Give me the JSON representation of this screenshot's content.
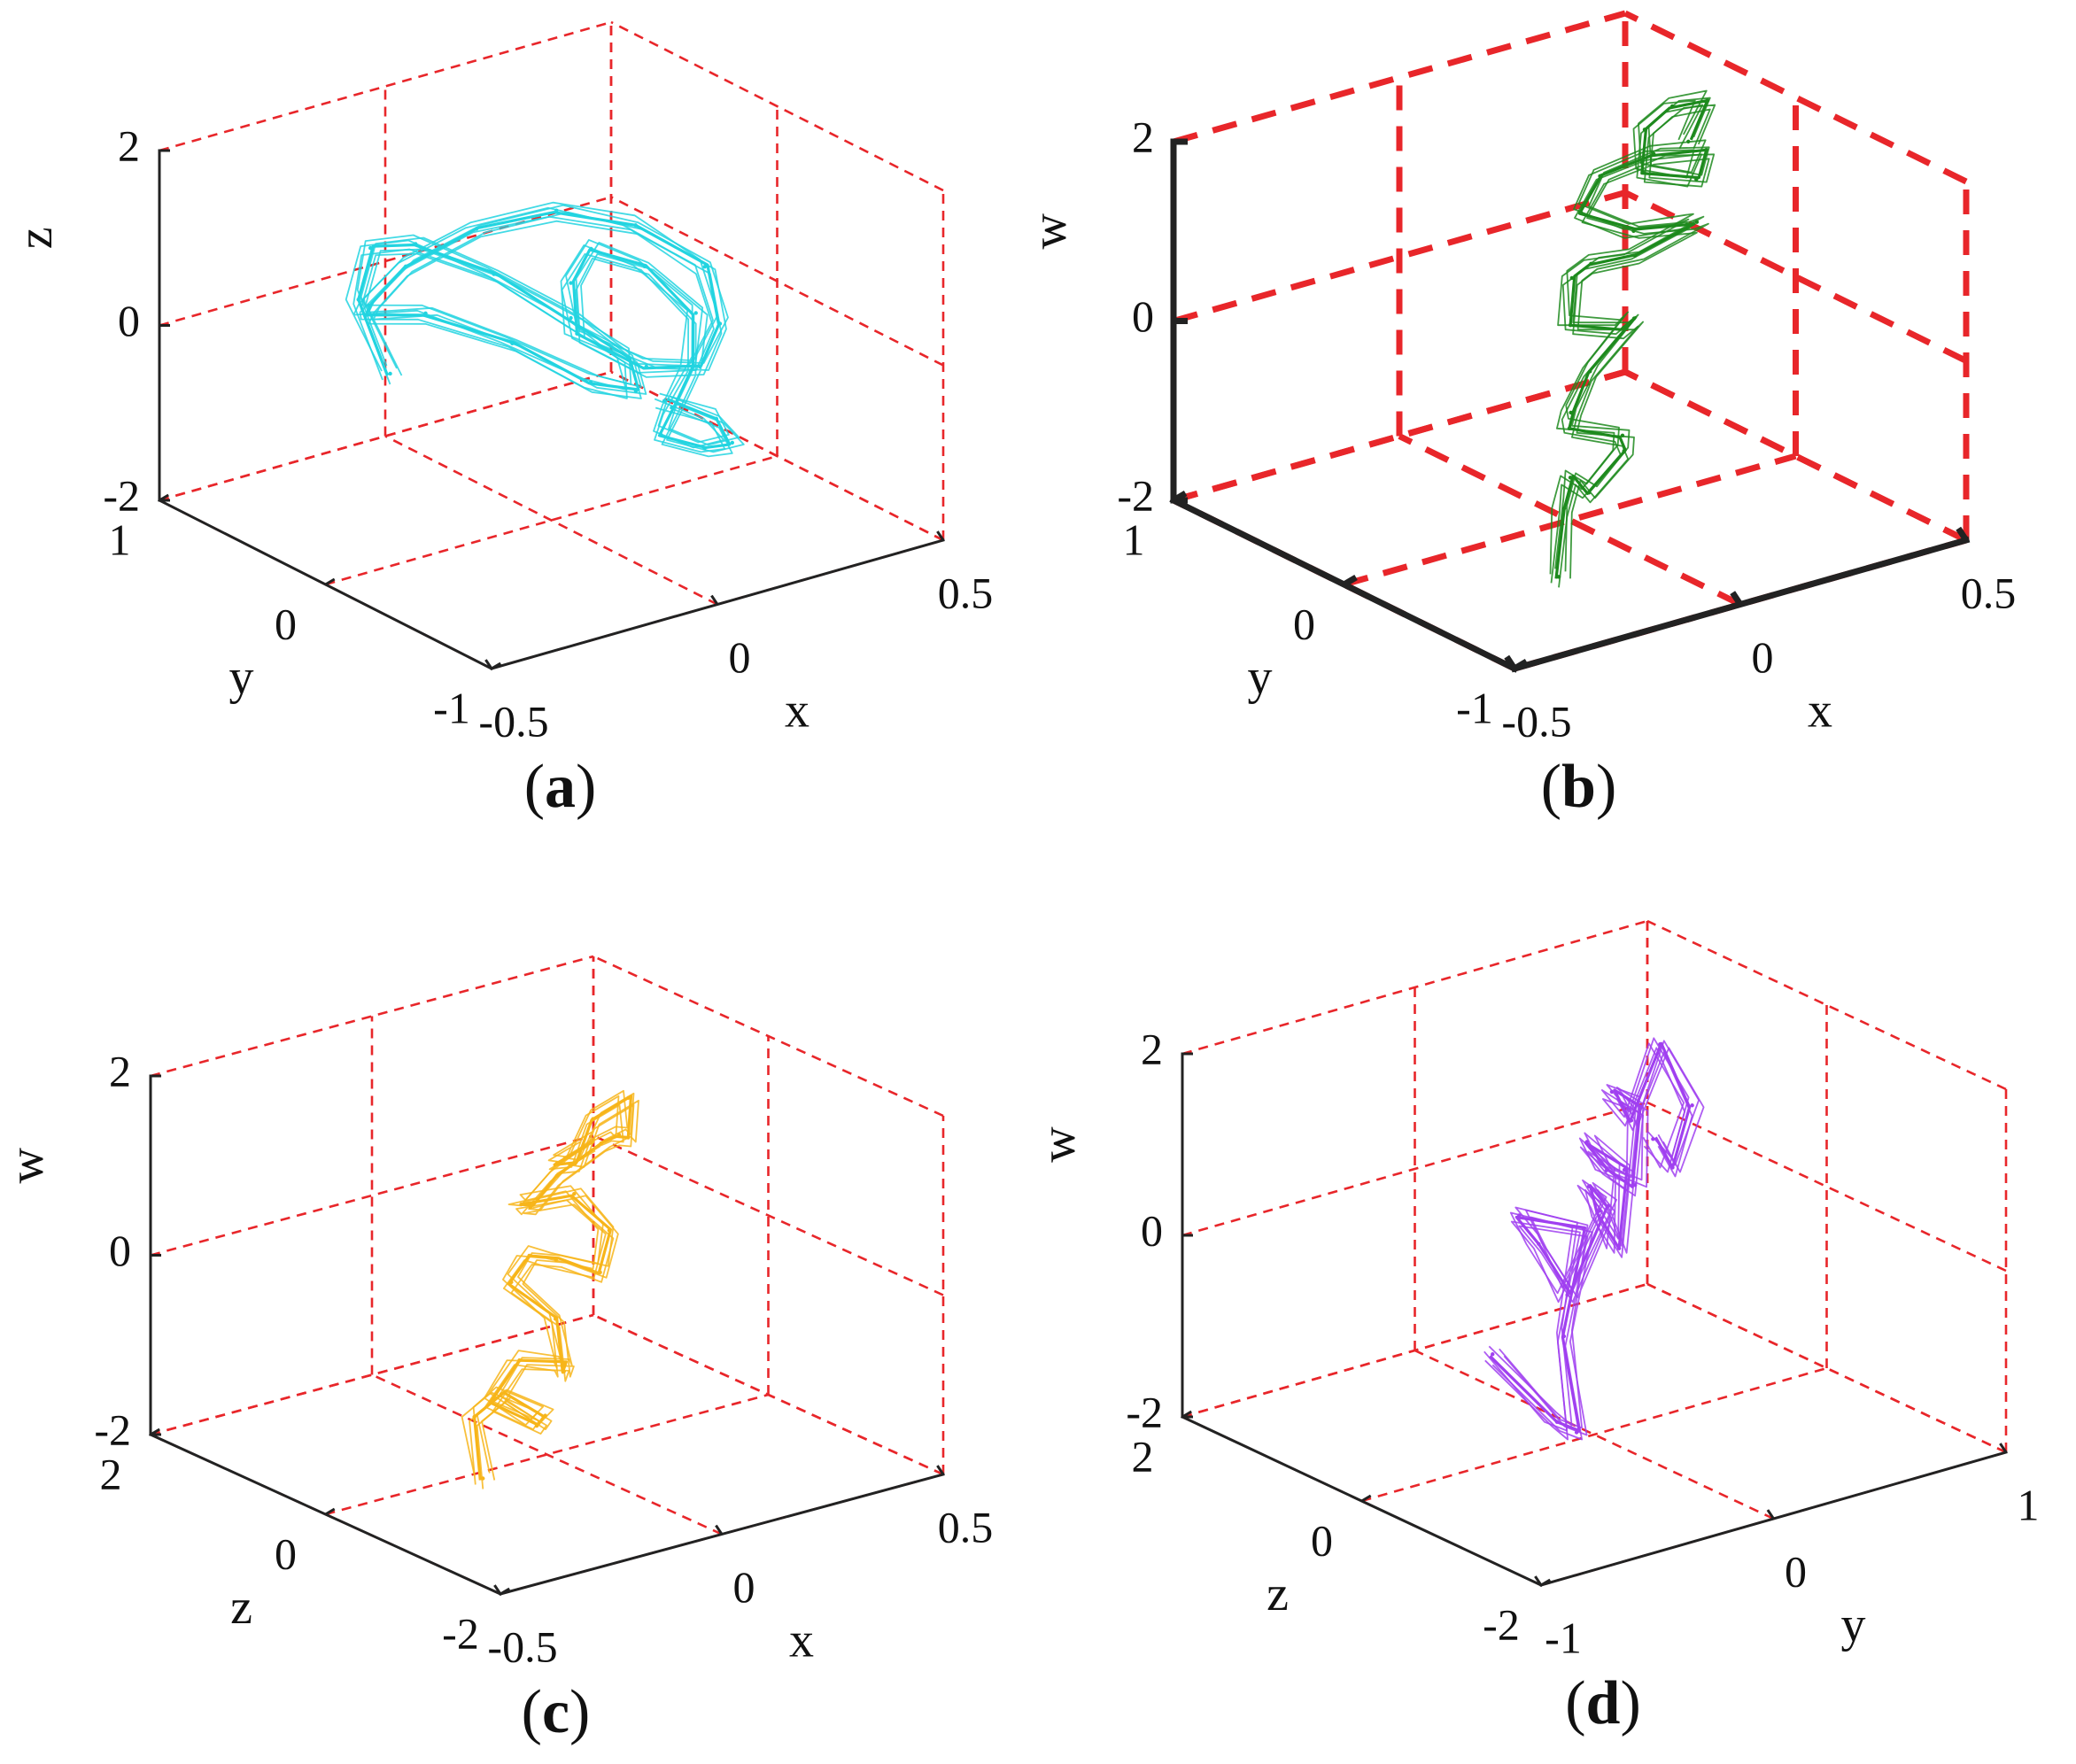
{
  "figure": {
    "panels": [
      {
        "id": "a",
        "caption_letter": "a",
        "line_color": "#22d4e0",
        "axis_weight": "thin",
        "chart_data": {
          "type": "line",
          "subtype": "3d-phase-portrait",
          "title": "",
          "x": {
            "label": "x",
            "ticks": [
              "-0.5",
              "0",
              "0.5"
            ],
            "range": [
              -0.5,
              0.5
            ]
          },
          "y": {
            "label": "y",
            "ticks": [
              "-1",
              "0",
              "1"
            ],
            "range": [
              -1,
              1
            ]
          },
          "z": {
            "label": "z",
            "ticks": [
              "-2",
              "0",
              "2"
            ],
            "range": [
              -2,
              2
            ]
          },
          "grid": true,
          "grid_color": "#e8262a",
          "grid_style": "dashed",
          "series": [
            {
              "x": [
                -0.32,
                -0.28,
                -0.18,
                -0.08,
                0.02,
                0.08,
                0.1,
                0.04,
                -0.06,
                -0.16,
                -0.26,
                -0.3,
                -0.22,
                -0.12,
                0.0,
                0.14,
                0.26,
                0.34,
                0.3,
                0.2,
                0.1,
                0.02,
                0.08,
                0.18,
                0.28,
                0.32,
                0.24,
                0.12,
                0.04,
                0.1,
                0.18,
                0.2,
                0.14
              ],
              "y": [
                0.1,
                0.4,
                0.6,
                0.6,
                0.4,
                0.1,
                -0.2,
                -0.4,
                -0.4,
                -0.2,
                0.05,
                0.3,
                0.5,
                0.55,
                0.45,
                0.35,
                0.2,
                0.0,
                -0.2,
                -0.35,
                -0.3,
                -0.1,
                0.1,
                0.25,
                0.2,
                0.0,
                -0.2,
                -0.4,
                -0.55,
                -0.65,
                -0.6,
                -0.45,
                -0.3
              ],
              "z": [
                0.05,
                0.55,
                0.8,
                0.7,
                0.4,
                0.1,
                -0.1,
                -0.2,
                0.05,
                0.45,
                0.7,
                0.5,
                0.3,
                0.55,
                0.9,
                1.0,
                0.8,
                0.4,
                0.0,
                -0.2,
                -0.1,
                0.2,
                0.5,
                0.6,
                0.3,
                -0.1,
                -0.4,
                -0.5,
                -0.55,
                -0.7,
                -0.8,
                -0.7,
                -0.55
              ]
            }
          ]
        }
      },
      {
        "id": "b",
        "caption_letter": "b",
        "line_color": "#1d8a1d",
        "axis_weight": "bold",
        "chart_data": {
          "type": "line",
          "subtype": "3d-phase-portrait",
          "title": "",
          "x": {
            "label": "x",
            "ticks": [
              "-0.5",
              "0",
              "0.5"
            ],
            "range": [
              -0.5,
              0.5
            ]
          },
          "y": {
            "label": "y",
            "ticks": [
              "-1",
              "0",
              "1"
            ],
            "range": [
              -1,
              1
            ]
          },
          "z": {
            "label": "w",
            "ticks": [
              "-2",
              "0",
              "2"
            ],
            "range": [
              -2,
              2
            ]
          },
          "grid": true,
          "grid_color": "#e8262a",
          "grid_style": "dashed",
          "series": [
            {
              "x": [
                -0.1,
                -0.05,
                0.02,
                0.08,
                0.12,
                0.06,
                -0.02,
                0.04,
                0.12,
                0.18,
                0.1,
                0.02,
                0.08,
                0.16,
                0.22,
                0.3,
                0.24,
                0.16,
                0.1,
                0.18,
                0.28,
                0.34,
                0.28,
                0.2,
                0.26,
                0.34,
                0.38,
                0.3
              ],
              "y": [
                -0.2,
                -0.1,
                0.05,
                0.1,
                0.0,
                -0.15,
                -0.05,
                0.1,
                0.2,
                0.1,
                -0.05,
                0.05,
                0.2,
                0.3,
                0.2,
                0.05,
                -0.05,
                0.05,
                0.2,
                0.3,
                0.25,
                0.1,
                0.0,
                0.1,
                0.25,
                0.3,
                0.2,
                0.1
              ],
              "z": [
                -2.3,
                -1.7,
                -1.6,
                -1.9,
                -1.4,
                -1.0,
                -0.9,
                -0.95,
                -0.7,
                -0.1,
                0.05,
                0.1,
                0.4,
                0.35,
                0.45,
                0.85,
                1.0,
                0.95,
                1.1,
                1.3,
                1.45,
                1.55,
                1.4,
                1.5,
                1.75,
                1.85,
                1.95,
                1.7
              ]
            }
          ]
        }
      },
      {
        "id": "c",
        "caption_letter": "c",
        "line_color": "#f7b51a",
        "axis_weight": "thin",
        "chart_data": {
          "type": "line",
          "subtype": "3d-phase-portrait",
          "title": "",
          "x": {
            "label": "x",
            "ticks": [
              "-0.5",
              "0",
              "0.5"
            ],
            "range": [
              -0.5,
              0.5
            ]
          },
          "y": {
            "label": "z",
            "ticks": [
              "-2",
              "0",
              "2"
            ],
            "range": [
              -2,
              2
            ]
          },
          "z": {
            "label": "w",
            "ticks": [
              "-2",
              "0",
              "2"
            ],
            "range": [
              -2,
              2
            ]
          },
          "grid": true,
          "grid_color": "#e8262a",
          "grid_style": "dashed",
          "series": [
            {
              "x": [
                -0.5,
                -0.46,
                -0.38,
                -0.3,
                -0.26,
                -0.3,
                -0.22,
                -0.14,
                -0.08,
                -0.04,
                -0.1,
                -0.02,
                0.06,
                0.14,
                0.2,
                0.18,
                0.1,
                0.16,
                0.24,
                0.32,
                0.4,
                0.46,
                0.5,
                0.44,
                0.36,
                0.28,
                0.34
              ],
              "y": [
                -1.8,
                -1.5,
                -1.4,
                -1.5,
                -1.2,
                -0.9,
                -0.8,
                -0.9,
                -0.6,
                -0.3,
                -0.1,
                0.1,
                0.2,
                0.1,
                0.3,
                0.6,
                0.8,
                1.0,
                1.1,
                1.0,
                1.2,
                1.4,
                1.6,
                1.7,
                1.5,
                1.3,
                1.2
              ],
              "z": [
                -0.8,
                -0.3,
                -0.2,
                -0.5,
                -0.8,
                -0.6,
                -0.3,
                -0.4,
                -0.7,
                -0.3,
                0.1,
                0.2,
                0.0,
                -0.2,
                0.1,
                0.4,
                0.3,
                0.1,
                0.3,
                0.6,
                0.5,
                0.3,
                0.6,
                0.4,
                0.1,
                0.3,
                0.5
              ]
            }
          ]
        }
      },
      {
        "id": "d",
        "caption_letter": "d",
        "line_color": "#a040f0",
        "axis_weight": "thin",
        "chart_data": {
          "type": "line",
          "subtype": "3d-phase-portrait",
          "title": "",
          "x": {
            "label": "y",
            "ticks": [
              "-1",
              "0",
              "1"
            ],
            "range": [
              -1,
              1
            ]
          },
          "y": {
            "label": "z",
            "ticks": [
              "-2",
              "0",
              "2"
            ],
            "range": [
              -2,
              2
            ]
          },
          "z": {
            "label": "w",
            "ticks": [
              "-2",
              "0",
              "2"
            ],
            "range": [
              -2,
              2
            ]
          },
          "grid": true,
          "grid_color": "#e8262a",
          "grid_style": "dashed",
          "series": [
            {
              "x": [
                -0.9,
                -0.7,
                -0.5,
                -0.4,
                -0.2,
                -0.4,
                -0.2,
                0.0,
                0.1,
                -0.1,
                0.1,
                0.3,
                0.4,
                0.2,
                0.4,
                0.6,
                0.7,
                0.5,
                0.7,
                0.9,
                1.0,
                0.8,
                0.6
              ],
              "y": [
                -1.2,
                -1.4,
                -1.1,
                -0.7,
                -0.4,
                -0.2,
                0.1,
                0.3,
                0.1,
                -0.2,
                0.2,
                0.5,
                0.7,
                0.6,
                0.9,
                1.1,
                1.3,
                1.1,
                1.4,
                1.6,
                1.5,
                1.2,
                0.9
              ],
              "z": [
                0.1,
                -0.7,
                -1.1,
                -0.3,
                0.6,
                0.8,
                0.2,
                -0.6,
                0.4,
                0.9,
                0.3,
                -0.4,
                0.3,
                0.8,
                0.2,
                -0.2,
                0.5,
                0.9,
                0.3,
                0.9,
                0.2,
                -0.2,
                0.4
              ]
            }
          ]
        }
      }
    ]
  }
}
